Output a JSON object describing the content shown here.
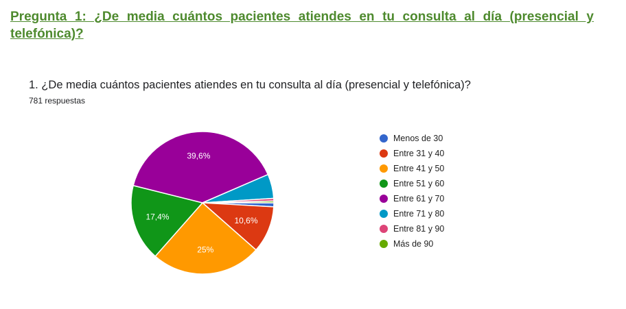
{
  "page_title": "Pregunta 1: ¿De media cuántos pacientes atiendes en tu consulta al día (presencial y telefónica)?",
  "chart_data": {
    "type": "pie",
    "title": "1. ¿De media cuántos pacientes atiendes en tu consulta al día (presencial y telefónica)?",
    "subtitle": "781 respuestas",
    "categories": [
      "Menos de 30",
      "Entre 31 y 40",
      "Entre 41 y 50",
      "Entre 51 y 60",
      "Entre 61 y 70",
      "Entre 71 y 80",
      "Entre 81 y 90",
      "Más de 90"
    ],
    "values": [
      0.9,
      10.6,
      25,
      17.4,
      39.6,
      5.5,
      0.6,
      0.4
    ],
    "data_labels": [
      "",
      "10,6%",
      "25%",
      "17,4%",
      "39,6%",
      "",
      "",
      ""
    ],
    "colors": [
      "#3366cc",
      "#dc3912",
      "#ff9900",
      "#109618",
      "#990099",
      "#0099c6",
      "#dd4477",
      "#66aa00"
    ],
    "legend_position": "right"
  }
}
